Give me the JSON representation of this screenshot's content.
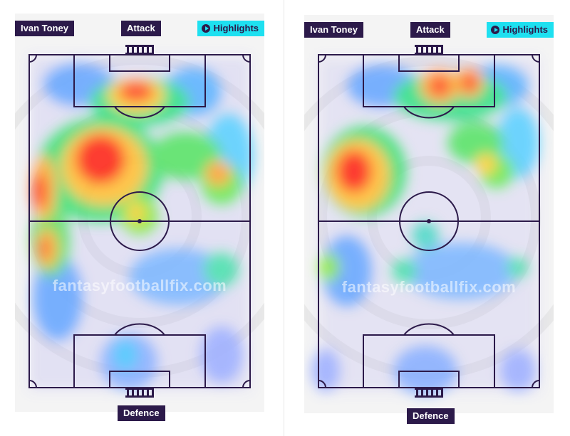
{
  "panels": [
    {
      "player_label": "Ivan Toney",
      "attack_label": "Attack",
      "defence_label": "Defence",
      "highlights_label": "Highlights",
      "watermark": "fantasyfootballfix.com",
      "hotspot_icon": "play-icon"
    },
    {
      "player_label": "Ivan Toney",
      "attack_label": "Attack",
      "defence_label": "Defence",
      "highlights_label": "Highlights",
      "watermark": "fantasyfootballfix.com",
      "hotspot_icon": "play-icon"
    }
  ],
  "colors": {
    "label_bg": "#2c1a4a",
    "highlights_bg": "#1ee0f0",
    "field_lines": "#2c1a4a",
    "panel_bg": "#f4f4f4"
  }
}
